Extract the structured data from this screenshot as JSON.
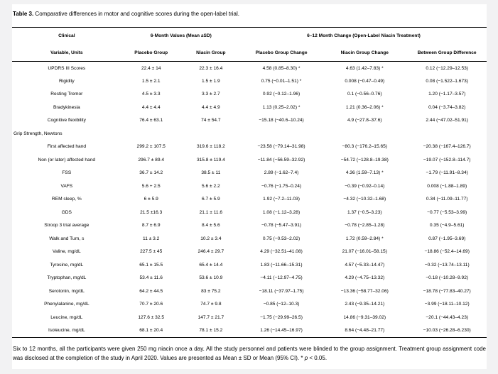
{
  "caption": {
    "label": "Table 3.",
    "text": " Comparative differences in motor and cognitive scores during the open-label trial."
  },
  "table": {
    "col_groups": [
      {
        "label": "Clinical",
        "colspan": 1
      },
      {
        "label": "6-Month Values (Mean ±SD)",
        "colspan": 2
      },
      {
        "label": "6–12 Month Change (Open-Label Niacin Treatment)",
        "colspan": 3
      }
    ],
    "columns": [
      "Variable, Units",
      "Placebo Group",
      "Niacin Group",
      "Placebo Group Change",
      "Niacin Group Change",
      "Between Group Difference"
    ],
    "rows": [
      {
        "type": "data",
        "cells": [
          "UPDRS III Scores",
          "22.4 ± 14",
          "22.3 ± 16.4",
          "4.58 (0.85–8.30) *",
          "4.63 (1.42–7.83) *",
          "0.12 (−12.29–12.53)"
        ]
      },
      {
        "type": "data",
        "cells": [
          "Rigidity",
          "1.5 ± 2.1",
          "1.5 ± 1.9",
          "0.75 (−0.01–1.51) *",
          "0.008 (−0.47–0.49)",
          "0.08 (−1.522–1.673)"
        ]
      },
      {
        "type": "data",
        "cells": [
          "Resting Tremor",
          "4.5 ± 3.3",
          "3.3 ± 2.7",
          "0.92 (−0.12–1.96)",
          "0.1 (−0.56–0.76)",
          "1.20 (−1.17–3.57)"
        ]
      },
      {
        "type": "data",
        "cells": [
          "Bradykinesia",
          "4.4 ± 4.4",
          "4.4 ± 4.9",
          "1.13 (0.25–2.02) *",
          "1.21 (0.36–2.06) *",
          "0.04 (−3.74–3.82)"
        ]
      },
      {
        "type": "data",
        "cells": [
          "Cognitive flexibility",
          "76.4 ± 63.1",
          "74 ± 54.7",
          "−15.18 (−40.6–10.24)",
          "4.9 (−27.8–37.6)",
          "2.44 (−47.02–51.91)"
        ]
      },
      {
        "type": "section",
        "cells": [
          "Grip Strength, Newtons",
          "",
          "",
          "",
          "",
          ""
        ]
      },
      {
        "type": "data",
        "cells": [
          "First affected hand",
          "299.2 ± 107.5",
          "319.6 ± 118.2",
          "−23.58 (−79.14–31.98)",
          "−80.3 (−176.2–15.65)",
          "−20.38 (−167.4–126.7)"
        ]
      },
      {
        "type": "data",
        "cells": [
          "Non (or later) affected hand",
          "296.7 ± 89.4",
          "315.8 ± 119.4",
          "−11.84 (−56.59–32.92)",
          "−54.72 (−128.8–19.38)",
          "−19.07 (−152.8–114.7)"
        ]
      },
      {
        "type": "data",
        "cells": [
          "FSS",
          "36.7 ± 14.2",
          "38.5 ± 11",
          "2.89 (−1.62–7.4)",
          "4.36 (1.59–7.13) *",
          "−1.79 (−11.91–8.34)"
        ]
      },
      {
        "type": "data",
        "cells": [
          "VAFS",
          "5.6 + 2.5",
          "5.6 ± 2.2",
          "−0.76 (−1.75–0.24)",
          "−0.39 (−0.92–0.14)",
          "0.008 (−1.88–1.89)"
        ]
      },
      {
        "type": "data",
        "cells": [
          "REM sleep, %",
          "6 ± 5.9",
          "6.7 ± 5.9",
          "1.92 (−7.2–11.03)",
          "−4.32 (−10.32–1.68)",
          "0.34 (−11.09–11.77)"
        ]
      },
      {
        "type": "data",
        "cells": [
          "GDS",
          "21.5 ±16.3",
          "21.1 ± 11.6",
          "1.08 (−1.12–3.28)",
          "1.37 (−0.5–3.23)",
          "−0.77 (−5.53–3.99)"
        ]
      },
      {
        "type": "data",
        "cells": [
          "Stroop 3 trial average",
          "8.7 ± 6.9",
          "8.4 ± 5.6",
          "−0.78 (−5.47–3.91)",
          "−0.78 (−2.85–1.28)",
          "0.35 (−4.9–5.61)"
        ]
      },
      {
        "type": "data",
        "cells": [
          "Walk and Turn, s",
          "11 ± 3.2",
          "10.2 ± 3.4",
          "0.75 (−0.53–2.02)",
          "1.72 (0.59–2.84) *",
          "0.87 (−1.95–3.69)"
        ]
      },
      {
        "type": "data",
        "cells": [
          "Valine, mg/dL",
          "227.5 ± 45",
          "246.4 ± 29.7",
          "4.29 (−32.51–41.08)",
          "21.07 (−16.01–58.15)",
          "−18.86 (−52.4–14.69)"
        ]
      },
      {
        "type": "data",
        "cells": [
          "Tyrosine, mg/dL",
          "65.1 ± 15.5",
          "65.4 ± 14.4",
          "1.83 (−11.66–15.31)",
          "4.57 (−5.33–14.47)",
          "−0.32 (−13.74–13.11)"
        ]
      },
      {
        "type": "data",
        "cells": [
          "Tryptophan, mg/dL",
          "53.4 ± 11.6",
          "53.6 ± 10.9",
          "−4.11 (−12.97–4.75)",
          "4.29 (−4.75–13.32)",
          "−0.18 (−10.28–9.92)"
        ]
      },
      {
        "type": "data",
        "cells": [
          "Serotonin, mg/dL",
          "64.2 ± 44.5",
          "83 ± 75.2",
          "−18.11 (−37.97–1.75)",
          "−13.36 (−58.77–32.06)",
          "−18.78 (−77.83–40.27)"
        ]
      },
      {
        "type": "data",
        "cells": [
          "Phenylalanine, mg/dL",
          "70.7 ± 20.6",
          "74.7 ± 9.8",
          "−0.85 (−12–10.3)",
          "2.43 (−9.35–14.21)",
          "−3.99 (−18.11–10.12)"
        ]
      },
      {
        "type": "data",
        "cells": [
          "Leucine, mg/dL",
          "127.6 ± 32.5",
          "147.7 ± 21.7",
          "−1.75 (−29.99–26.5)",
          "14.86 (−9.31–39.02)",
          "−20.1 (−44.43–4.23)"
        ]
      },
      {
        "type": "data",
        "cells": [
          "Isoleucine, mg/dL",
          "68.1 ± 20.4",
          "78.1 ± 15.2",
          "1.26 (−14.45–16.97)",
          "8.64 (−4.48–21.77)",
          "−10.03 (−26.28–6.230)"
        ]
      }
    ]
  },
  "footnote": {
    "text_before_p": "Six to 12 months, all the participants were given 250 mg niacin once a day. All the study personnel and patients were blinded to the group assignment. Treatment group assignment code was disclosed at the completion of the study in April 2020. Values are presented as Mean ± SD or Mean (95% CI). * ",
    "p_symbol": "p",
    "text_after_p": " < 0.05."
  },
  "colors": {
    "page_background": "#f2f2f3",
    "panel_background": "#ffffff",
    "text": "#000000",
    "rule": "#000000"
  }
}
